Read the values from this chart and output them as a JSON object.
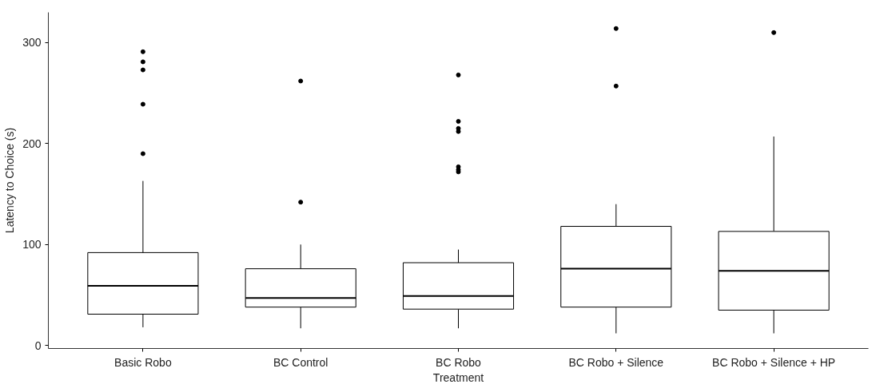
{
  "chart_data": {
    "type": "box",
    "xlabel": "Treatment",
    "ylabel": "Latency to Choice (s)",
    "categories": [
      "Basic Robo",
      "BC Control",
      "BC Robo",
      "BC Robo + Silence",
      "BC Robo + Silence + HP"
    ],
    "ylim": [
      -3,
      330
    ],
    "yticks": [
      0,
      100,
      200,
      300
    ],
    "grid": false,
    "color": "#000000",
    "boxes": [
      {
        "low": 18,
        "q1": 31,
        "median": 59,
        "q3": 92,
        "high": 163,
        "outliers": [
          291,
          281,
          273,
          239,
          190
        ]
      },
      {
        "low": 17,
        "q1": 38,
        "median": 47,
        "q3": 76,
        "high": 100,
        "outliers": [
          262,
          142
        ]
      },
      {
        "low": 17,
        "q1": 36,
        "median": 49,
        "q3": 82,
        "high": 95,
        "outliers": [
          268,
          222,
          215,
          212,
          177,
          174,
          172
        ]
      },
      {
        "low": 12,
        "q1": 38,
        "median": 76,
        "q3": 118,
        "high": 140,
        "outliers": [
          314,
          257
        ]
      },
      {
        "low": 12,
        "q1": 35,
        "median": 74,
        "q3": 113,
        "high": 207,
        "outliers": [
          310
        ]
      }
    ]
  }
}
